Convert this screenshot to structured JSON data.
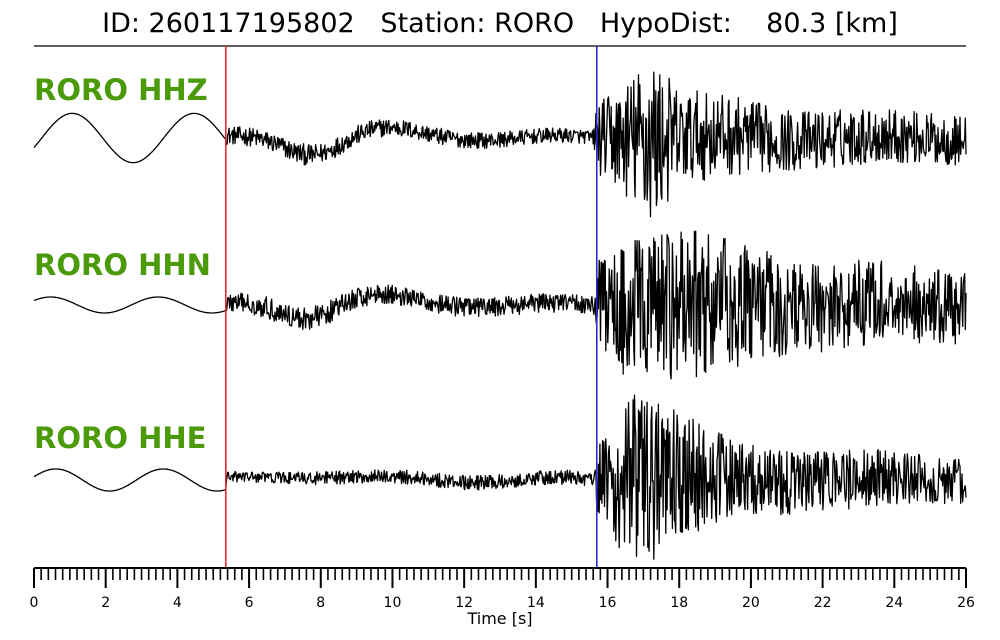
{
  "title": {
    "text": "ID: 260117195802   Station: RORO   HypoDist:    80.3 [km]"
  },
  "chart_data": {
    "type": "line",
    "title": "ID: 260117195802   Station: RORO   HypoDist:    80.3 [km]",
    "xlabel": "Time [s]",
    "ylabel": "",
    "xlim": [
      0,
      26
    ],
    "x_ticks": [
      0,
      2,
      4,
      6,
      8,
      10,
      12,
      14,
      16,
      18,
      20,
      22,
      24,
      26
    ],
    "minor_tick_step": 0.2,
    "grid": false,
    "picks": [
      {
        "phase": "P",
        "time": 5.35,
        "color": "#e8262b"
      },
      {
        "phase": "S",
        "time": 15.7,
        "color": "#2b2bd0"
      }
    ],
    "series": [
      {
        "name": "RORO HHZ",
        "color": "#000000",
        "label_color": "#4a9a0a",
        "envelope": [
          [
            0.0,
            0.0
          ],
          [
            5.3,
            0.0
          ],
          [
            5.35,
            0.1
          ],
          [
            7.5,
            0.12
          ],
          [
            10,
            0.1
          ],
          [
            15.6,
            0.08
          ],
          [
            15.7,
            0.4
          ],
          [
            16.4,
            0.6
          ],
          [
            17.2,
            1.0
          ],
          [
            18.0,
            0.55
          ],
          [
            21.0,
            0.35
          ],
          [
            26,
            0.28
          ]
        ]
      },
      {
        "name": "RORO HHN",
        "color": "#000000",
        "label_color": "#4a9a0a",
        "envelope": [
          [
            0.0,
            0.0
          ],
          [
            5.3,
            0.0
          ],
          [
            5.35,
            0.12
          ],
          [
            7.5,
            0.15
          ],
          [
            10,
            0.12
          ],
          [
            15.6,
            0.12
          ],
          [
            15.7,
            0.55
          ],
          [
            16.5,
            0.9
          ],
          [
            18.5,
            0.95
          ],
          [
            21.0,
            0.6
          ],
          [
            26,
            0.45
          ]
        ]
      },
      {
        "name": "RORO HHE",
        "color": "#000000",
        "label_color": "#4a9a0a",
        "envelope": [
          [
            0.0,
            0.0
          ],
          [
            5.3,
            0.0
          ],
          [
            5.35,
            0.06
          ],
          [
            8,
            0.07
          ],
          [
            12,
            0.08
          ],
          [
            15.6,
            0.08
          ],
          [
            15.7,
            0.35
          ],
          [
            16.6,
            1.0
          ],
          [
            17.8,
            0.8
          ],
          [
            19.5,
            0.4
          ],
          [
            26,
            0.25
          ]
        ]
      }
    ]
  }
}
